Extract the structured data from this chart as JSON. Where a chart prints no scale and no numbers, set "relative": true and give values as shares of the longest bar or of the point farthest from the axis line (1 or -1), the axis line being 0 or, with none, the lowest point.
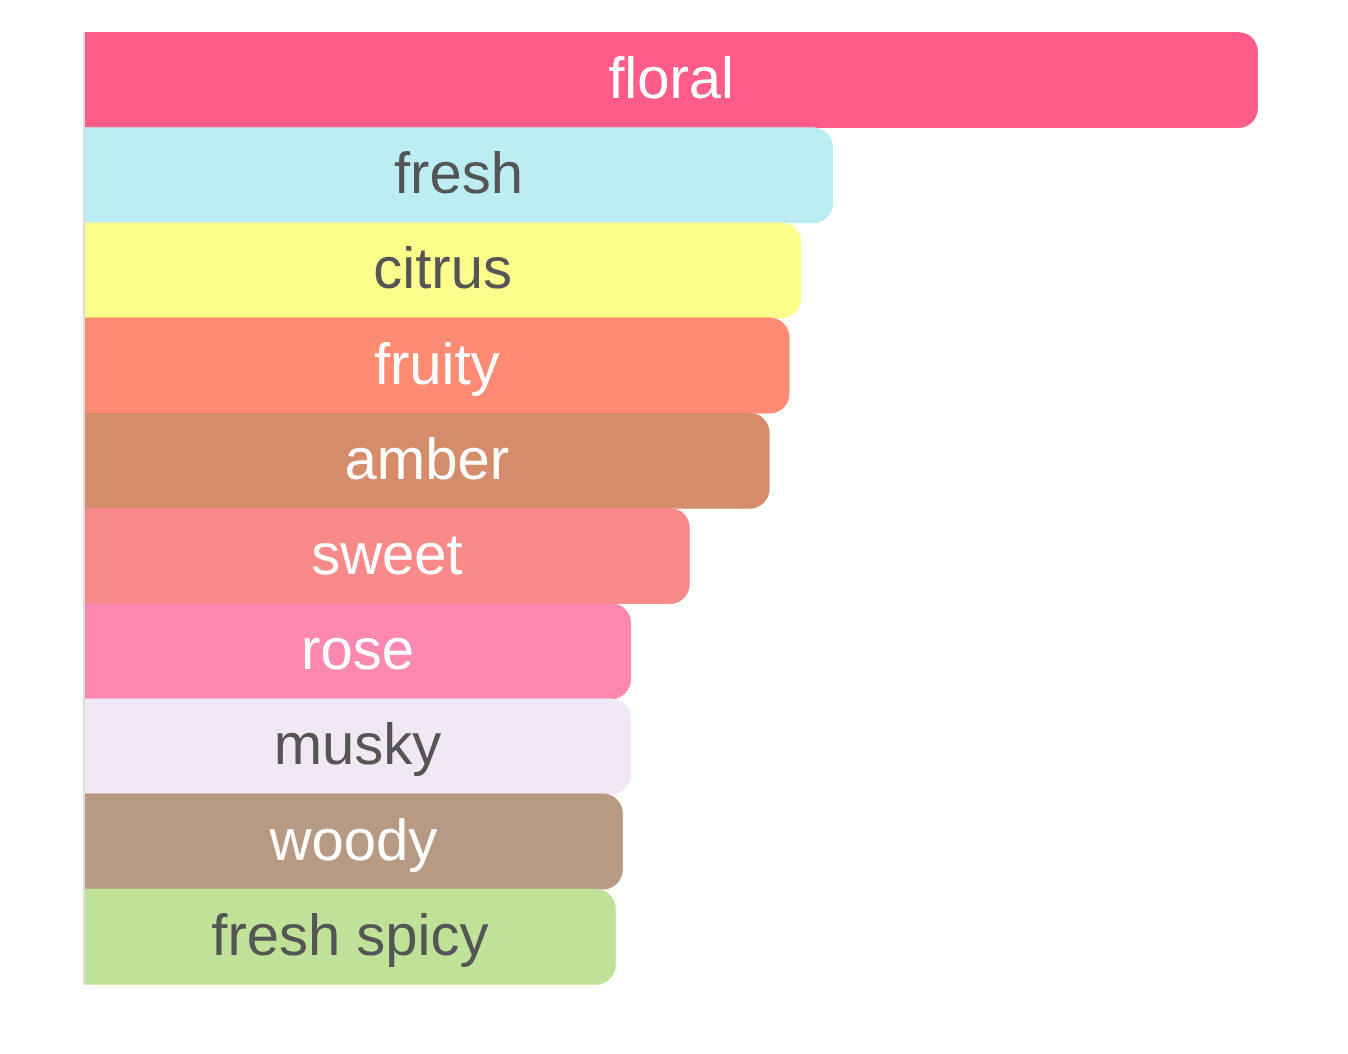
{
  "chart_data": {
    "type": "bar",
    "orientation": "horizontal",
    "relative": true,
    "categories": [
      "floral",
      "fresh",
      "citrus",
      "fruity",
      "amber",
      "sweet",
      "rose",
      "musky",
      "woody",
      "fresh spicy"
    ],
    "values": [
      1,
      0.638,
      0.611,
      0.601,
      0.584,
      0.516,
      0.466,
      0.466,
      0.459,
      0.453
    ],
    "colors": [
      "#ff5c8a",
      "#bbedf2",
      "#fcfe8c",
      "#ff8b73",
      "#d48c6a",
      "#f88b8a",
      "#ff88b0",
      "#f0e8f4",
      "#b69a84",
      "#c0e298"
    ]
  }
}
